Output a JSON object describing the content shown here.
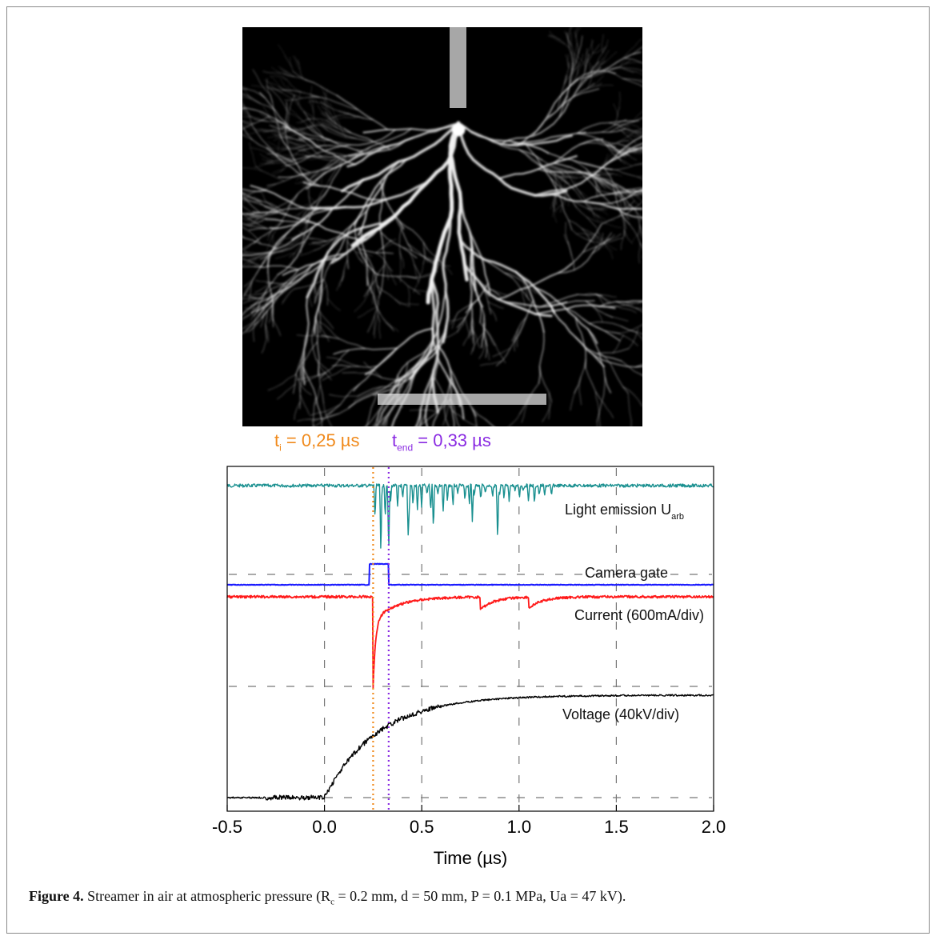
{
  "figure": {
    "label": "Figure 4.",
    "caption_main": "Streamer in air at atmospheric pressure (R",
    "caption_sub": "c",
    "caption_rest": " = 0.2 mm, d = 50 mm, P = 0.1 MPa, Ua = 47 kV)."
  },
  "markers": {
    "ti": {
      "base": "t",
      "sub": "i",
      "value": " = 0,25 µs",
      "color": "#f08a1c"
    },
    "tend": {
      "base": "t",
      "sub": "end",
      "value": " = 0,33 µs",
      "color": "#8a2be2"
    }
  },
  "chart_data": {
    "type": "line",
    "xlabel": "Time (µs)",
    "xlim": [
      -0.5,
      2.0
    ],
    "x_ticks": [
      "-0.5",
      "0.0",
      "0.5",
      "1.0",
      "1.5",
      "2.0"
    ],
    "vlines": [
      {
        "x": 0.25,
        "color": "#f08a1c",
        "style": "dotted"
      },
      {
        "x": 0.33,
        "color": "#8a2be2",
        "style": "dotted"
      }
    ],
    "series": [
      {
        "name": "Light emission",
        "name_sub": "arb",
        "name_prefix": "U",
        "color": "#1a9090"
      },
      {
        "name": "Camera gate",
        "color": "#1a1aff",
        "gate": [
          0.23,
          0.33
        ]
      },
      {
        "name": "Current (600mA/div)",
        "color": "#ff1a1a",
        "pulses": [
          0.25,
          0.8,
          1.05
        ]
      },
      {
        "name": "Voltage (40kV/div)",
        "color": "#000000",
        "rise_start": 0.0,
        "plateau_from": 1.0
      }
    ]
  }
}
